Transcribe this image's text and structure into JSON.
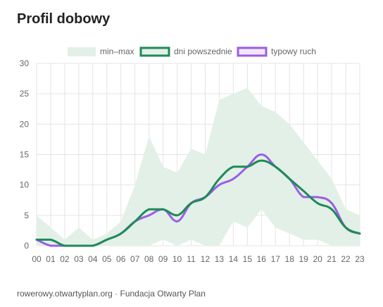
{
  "page": {
    "title": "Profil dobowy",
    "footer": "rowerowy.otwartyplan.org · Fundacja Otwarty Plan"
  },
  "chart_data": {
    "type": "line",
    "title": "Profil dobowy",
    "xlabel": "",
    "ylabel": "",
    "ylim": [
      0,
      30
    ],
    "yticks": [
      "0",
      "5",
      "10",
      "15",
      "20",
      "25",
      "30"
    ],
    "categories": [
      "00",
      "01",
      "02",
      "03",
      "04",
      "05",
      "06",
      "07",
      "08",
      "09",
      "10",
      "11",
      "12",
      "13",
      "14",
      "15",
      "16",
      "17",
      "18",
      "19",
      "20",
      "21",
      "22",
      "23"
    ],
    "grid": true,
    "legend_position": "top-center",
    "band": {
      "name": "min–max",
      "color": "#e2f0e8",
      "min": [
        0,
        0,
        0,
        0,
        0,
        0,
        0,
        0,
        0,
        1,
        0,
        1,
        0,
        0,
        4,
        3,
        6,
        3,
        2,
        1,
        1,
        0,
        0,
        0
      ],
      "max": [
        5,
        3,
        1,
        3,
        1,
        2,
        4,
        10,
        18,
        13,
        12,
        16,
        15,
        24,
        25,
        26,
        23,
        22,
        20,
        17,
        14,
        11,
        6,
        5
      ]
    },
    "series": [
      {
        "name": "dni powszednie",
        "color": "#1e8a55",
        "values": [
          1,
          1,
          0,
          0,
          0,
          1,
          2,
          4,
          6,
          6,
          5,
          7,
          8,
          11,
          13,
          13,
          14,
          13,
          11,
          9,
          7,
          6,
          3,
          2
        ]
      },
      {
        "name": "typowy ruch",
        "color": "#9b5de5",
        "values": [
          1,
          0,
          0,
          0,
          0,
          1,
          2,
          4,
          5,
          6,
          4,
          7,
          8,
          10,
          11,
          13,
          15,
          13,
          11,
          8,
          8,
          7,
          3,
          2
        ]
      }
    ]
  }
}
